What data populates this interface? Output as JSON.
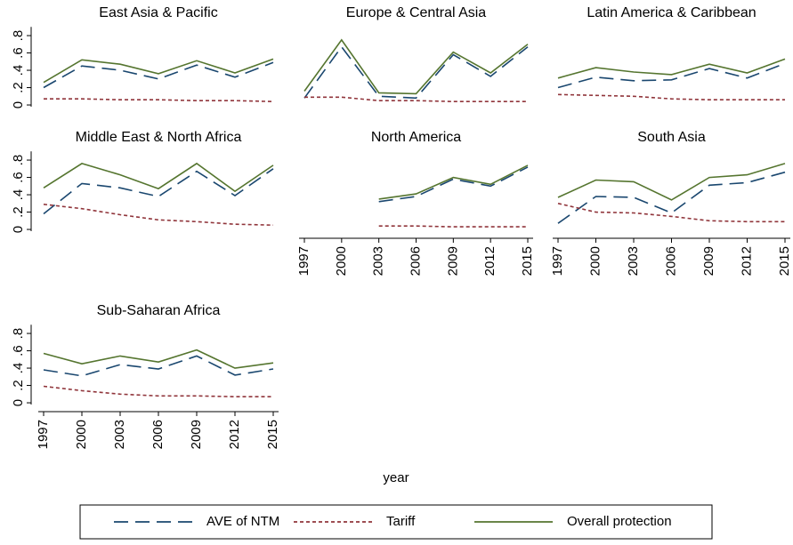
{
  "xlabel": "year",
  "chart_data": [
    {
      "type": "line",
      "title": "East Asia & Pacific",
      "categories": [
        "1997",
        "2000",
        "2003",
        "2006",
        "2009",
        "2012",
        "2015"
      ],
      "xtick_labels": false,
      "ylim": [
        -0.02,
        0.9
      ],
      "yticks": [
        0,
        {
          "value": 0.2,
          "label": ".2"
        },
        {
          "value": 0.4,
          "label": ".4"
        },
        {
          "value": 0.6,
          "label": ".6"
        },
        {
          "value": 0.8,
          "label": ".8"
        }
      ],
      "series": [
        {
          "name": "AVE of NTM",
          "color": "#1a476f",
          "dash": "long",
          "values": [
            0.2,
            0.45,
            0.4,
            0.3,
            0.46,
            0.32,
            0.49
          ]
        },
        {
          "name": "Tariff",
          "color": "#90353b",
          "dash": "short",
          "values": [
            0.07,
            0.07,
            0.06,
            0.06,
            0.05,
            0.05,
            0.04
          ]
        },
        {
          "name": "Overall protection",
          "color": "#55752f",
          "dash": "solid",
          "values": [
            0.26,
            0.52,
            0.47,
            0.36,
            0.51,
            0.37,
            0.53
          ]
        }
      ]
    },
    {
      "type": "line",
      "title": "Europe & Central Asia",
      "categories": [
        "1997",
        "2000",
        "2003",
        "2006",
        "2009",
        "2012",
        "2015"
      ],
      "xtick_labels": false,
      "ylim": [
        -0.02,
        0.9
      ],
      "series": [
        {
          "name": "AVE of NTM",
          "color": "#1a476f",
          "dash": "long",
          "values": [
            0.08,
            0.67,
            0.1,
            0.08,
            0.58,
            0.33,
            0.67
          ]
        },
        {
          "name": "Tariff",
          "color": "#90353b",
          "dash": "short",
          "values": [
            0.09,
            0.09,
            0.05,
            0.05,
            0.04,
            0.04,
            0.04
          ]
        },
        {
          "name": "Overall protection",
          "color": "#55752f",
          "dash": "solid",
          "values": [
            0.16,
            0.75,
            0.14,
            0.13,
            0.61,
            0.37,
            0.7
          ]
        }
      ]
    },
    {
      "type": "line",
      "title": "Latin America & Caribbean",
      "categories": [
        "1997",
        "2000",
        "2003",
        "2006",
        "2009",
        "2012",
        "2015"
      ],
      "xtick_labels": false,
      "ylim": [
        -0.02,
        0.9
      ],
      "series": [
        {
          "name": "AVE of NTM",
          "color": "#1a476f",
          "dash": "long",
          "values": [
            0.2,
            0.32,
            0.28,
            0.29,
            0.42,
            0.31,
            0.48
          ]
        },
        {
          "name": "Tariff",
          "color": "#90353b",
          "dash": "short",
          "values": [
            0.12,
            0.11,
            0.1,
            0.07,
            0.06,
            0.06,
            0.06
          ]
        },
        {
          "name": "Overall protection",
          "color": "#55752f",
          "dash": "solid",
          "values": [
            0.31,
            0.43,
            0.38,
            0.35,
            0.47,
            0.37,
            0.53
          ]
        }
      ]
    },
    {
      "type": "line",
      "title": "Middle East & North Africa",
      "categories": [
        "1997",
        "2000",
        "2003",
        "2006",
        "2009",
        "2012",
        "2015"
      ],
      "xtick_labels": false,
      "ylim": [
        -0.02,
        0.9
      ],
      "yticks": [
        0,
        {
          "value": 0.2,
          "label": ".2"
        },
        {
          "value": 0.4,
          "label": ".4"
        },
        {
          "value": 0.6,
          "label": ".6"
        },
        {
          "value": 0.8,
          "label": ".8"
        }
      ],
      "series": [
        {
          "name": "AVE of NTM",
          "color": "#1a476f",
          "dash": "long",
          "values": [
            0.18,
            0.53,
            0.48,
            0.38,
            0.67,
            0.39,
            0.7
          ]
        },
        {
          "name": "Tariff",
          "color": "#90353b",
          "dash": "short",
          "values": [
            0.29,
            0.24,
            0.17,
            0.11,
            0.09,
            0.06,
            0.05
          ]
        },
        {
          "name": "Overall protection",
          "color": "#55752f",
          "dash": "solid",
          "values": [
            0.48,
            0.76,
            0.63,
            0.47,
            0.76,
            0.44,
            0.74
          ]
        }
      ]
    },
    {
      "type": "line",
      "title": "North America",
      "categories": [
        "1997",
        "2000",
        "2003",
        "2006",
        "2009",
        "2012",
        "2015"
      ],
      "xtick_labels": true,
      "ylim": [
        -0.02,
        0.9
      ],
      "series": [
        {
          "name": "AVE of NTM",
          "color": "#1a476f",
          "dash": "long",
          "values": [
            null,
            null,
            0.32,
            0.38,
            0.58,
            0.5,
            0.72
          ]
        },
        {
          "name": "Tariff",
          "color": "#90353b",
          "dash": "short",
          "values": [
            null,
            null,
            0.04,
            0.04,
            0.03,
            0.03,
            0.03
          ]
        },
        {
          "name": "Overall protection",
          "color": "#55752f",
          "dash": "solid",
          "values": [
            null,
            null,
            0.35,
            0.41,
            0.6,
            0.52,
            0.74
          ]
        }
      ]
    },
    {
      "type": "line",
      "title": "South Asia",
      "categories": [
        "1997",
        "2000",
        "2003",
        "2006",
        "2009",
        "2012",
        "2015"
      ],
      "xtick_labels": true,
      "ylim": [
        -0.02,
        0.9
      ],
      "series": [
        {
          "name": "AVE of NTM",
          "color": "#1a476f",
          "dash": "long",
          "values": [
            0.07,
            0.38,
            0.37,
            0.19,
            0.51,
            0.54,
            0.66
          ]
        },
        {
          "name": "Tariff",
          "color": "#90353b",
          "dash": "short",
          "values": [
            0.3,
            0.2,
            0.19,
            0.15,
            0.1,
            0.09,
            0.09
          ]
        },
        {
          "name": "Overall protection",
          "color": "#55752f",
          "dash": "solid",
          "values": [
            0.37,
            0.57,
            0.55,
            0.34,
            0.6,
            0.63,
            0.76
          ]
        }
      ]
    },
    {
      "type": "line",
      "title": "Sub-Saharan Africa",
      "categories": [
        "1997",
        "2000",
        "2003",
        "2006",
        "2009",
        "2012",
        "2015"
      ],
      "xtick_labels": true,
      "ylim": [
        -0.02,
        0.9
      ],
      "yticks": [
        0,
        {
          "value": 0.2,
          "label": ".2"
        },
        {
          "value": 0.4,
          "label": ".4"
        },
        {
          "value": 0.6,
          "label": ".6"
        },
        {
          "value": 0.8,
          "label": ".8"
        }
      ],
      "series": [
        {
          "name": "AVE of NTM",
          "color": "#1a476f",
          "dash": "long",
          "values": [
            0.38,
            0.31,
            0.44,
            0.39,
            0.54,
            0.32,
            0.39
          ]
        },
        {
          "name": "Tariff",
          "color": "#90353b",
          "dash": "short",
          "values": [
            0.19,
            0.14,
            0.1,
            0.08,
            0.08,
            0.07,
            0.07
          ]
        },
        {
          "name": "Overall protection",
          "color": "#55752f",
          "dash": "solid",
          "values": [
            0.57,
            0.45,
            0.54,
            0.47,
            0.61,
            0.4,
            0.46
          ]
        }
      ]
    }
  ]
}
